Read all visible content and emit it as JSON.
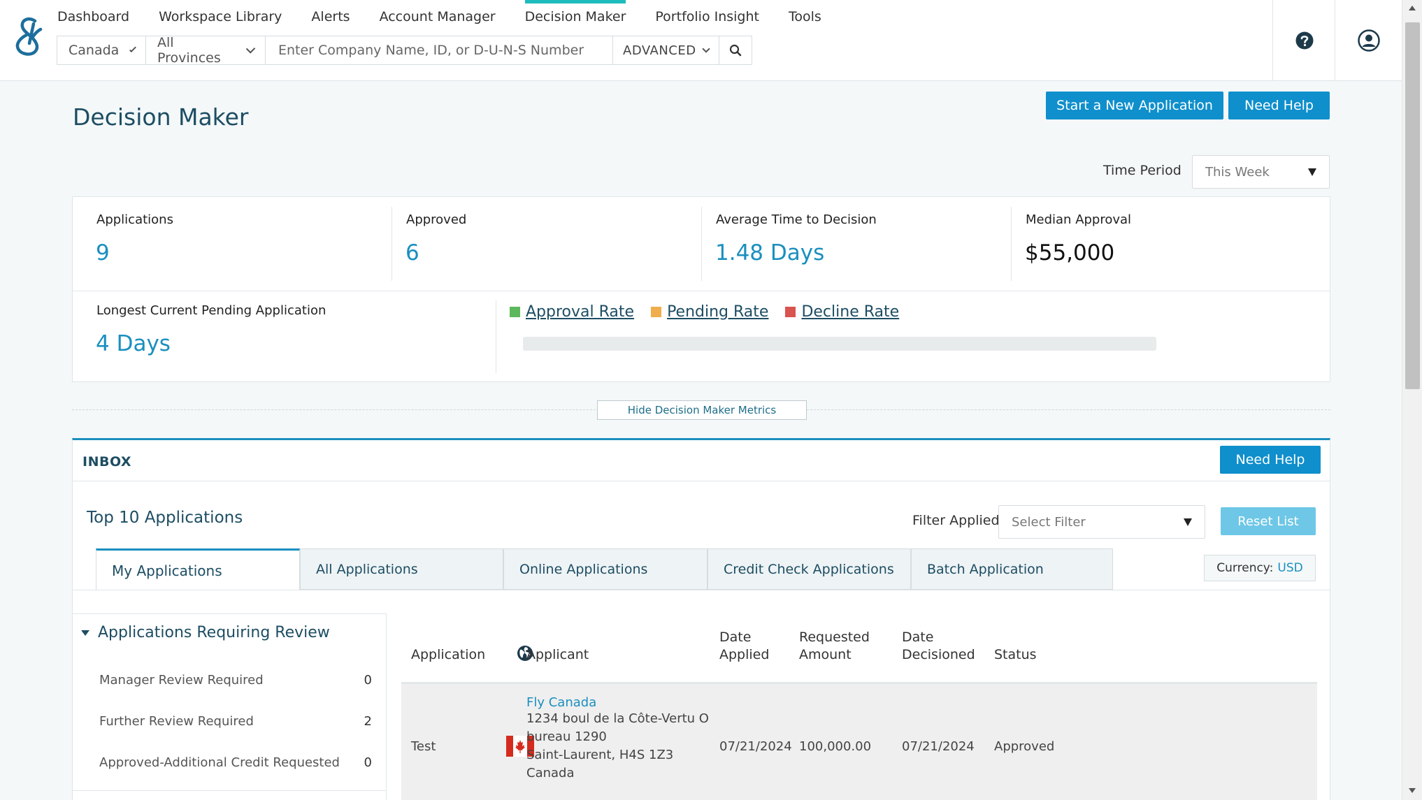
{
  "nav": {
    "items": [
      "Dashboard",
      "Workspace Library",
      "Alerts",
      "Account Manager",
      "Decision Maker",
      "Portfolio Insight",
      "Tools"
    ],
    "active_index": 4
  },
  "search": {
    "country": "Canada",
    "province": "All Provinces",
    "placeholder": "Enter Company Name, ID, or D-U-N-S Number",
    "advanced_label": "ADVANCED"
  },
  "header": {
    "title": "Decision Maker",
    "start_button": "Start a New Application",
    "help_button": "Need Help",
    "time_period_label": "Time Period",
    "time_period_value": "This Week"
  },
  "metrics": {
    "applications_label": "Applications",
    "applications_value": "9",
    "approved_label": "Approved",
    "approved_value": "6",
    "avg_time_label": "Average Time to Decision",
    "avg_time_value": "1.48 Days",
    "median_label": "Median Approval",
    "median_value": "$55,000",
    "longest_label": "Longest Current Pending Application",
    "longest_value": "4 Days",
    "legend": {
      "approval": "Approval Rate",
      "pending": "Pending Rate",
      "decline": "Decline Rate"
    },
    "colors": {
      "approval": "#5cb85c",
      "pending": "#f0ad4e",
      "decline": "#d9534f"
    },
    "hide_button": "Hide Decision Maker Metrics"
  },
  "inbox": {
    "title": "INBOX",
    "help_button": "Need Help",
    "top_title": "Top 10 Applications",
    "filter_label": "Filter Applied",
    "filter_placeholder": "Select Filter",
    "reset_button": "Reset List",
    "currency_label": "Currency:",
    "currency_value": "USD",
    "tabs": [
      "My Applications",
      "All Applications",
      "Online Applications",
      "Credit Check Applications",
      "Batch Application"
    ],
    "review": {
      "title": "Applications Requiring Review",
      "rows": [
        {
          "label": "Manager Review Required",
          "count": "0"
        },
        {
          "label": "Further Review Required",
          "count": "2"
        },
        {
          "label": "Approved-Additional Credit Requested",
          "count": "0"
        }
      ]
    },
    "table": {
      "headers": {
        "application": "Application",
        "applicant": "Applicant",
        "date_applied_1": "Date",
        "date_applied_2": "Applied",
        "requested_1": "Requested",
        "requested_2": "Amount",
        "decisioned_1": "Date",
        "decisioned_2": "Decisioned",
        "status": "Status"
      },
      "rows": [
        {
          "application": "Test",
          "applicant_name": "Fly Canada",
          "addr1": "1234 boul de la Côte-Vertu O",
          "addr2": "bureau 1290",
          "addr3": "Saint-Laurent, H4S 1Z3",
          "addr4": "Canada",
          "date_applied": "07/21/2024",
          "requested_amount": "100,000.00",
          "date_decisioned": "07/21/2024",
          "status": "Approved"
        }
      ]
    }
  }
}
